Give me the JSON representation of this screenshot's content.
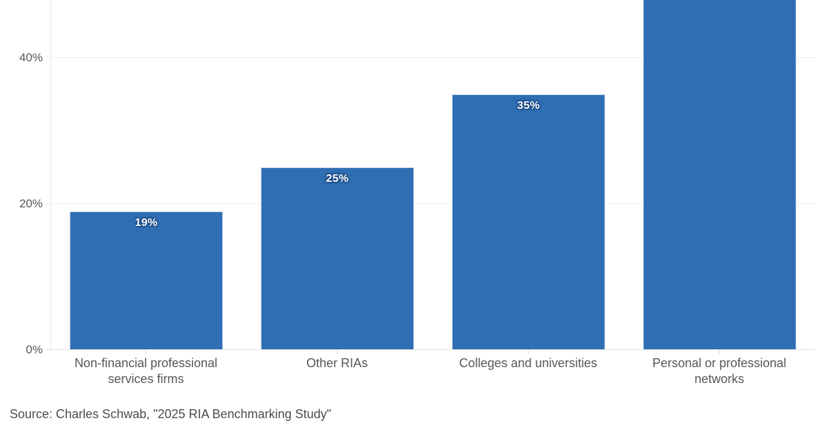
{
  "chart_data": {
    "type": "bar",
    "title": "",
    "categories": [
      "Non-financial professional services firms",
      "Other RIAs",
      "Colleges and universities",
      "Personal or professional networks"
    ],
    "category_labels_wrapped": [
      "Non-financial professional\nservices firms",
      "Other RIAs",
      "Colleges and universities",
      "Personal or professional\nnetworks"
    ],
    "values": [
      19,
      25,
      35,
      null
    ],
    "data_labels": [
      "19%",
      "25%",
      "35%",
      ""
    ],
    "render_heights_pct": [
      19,
      25,
      35,
      50
    ],
    "y_tick_labels": [
      "40%",
      "20%",
      "0%"
    ],
    "ylim_visible": [
      0,
      48
    ],
    "grid": true,
    "legend": false,
    "notes": "Fourth bar is cropped by the top edge of the image; its value label is not visible. Visible portion corresponds to at least 48%.",
    "colors": {
      "bar": "#2f6eb3",
      "bar_border": "#bcd0e8",
      "data_label_text": "#ffffff",
      "data_label_outline": "#17457c",
      "axis_text": "#55565a",
      "gridline": "#eeeeee",
      "axis_line": "#e2e2e2"
    }
  },
  "source_note": "Source: Charles Schwab, \"2025 RIA Benchmarking Study\""
}
